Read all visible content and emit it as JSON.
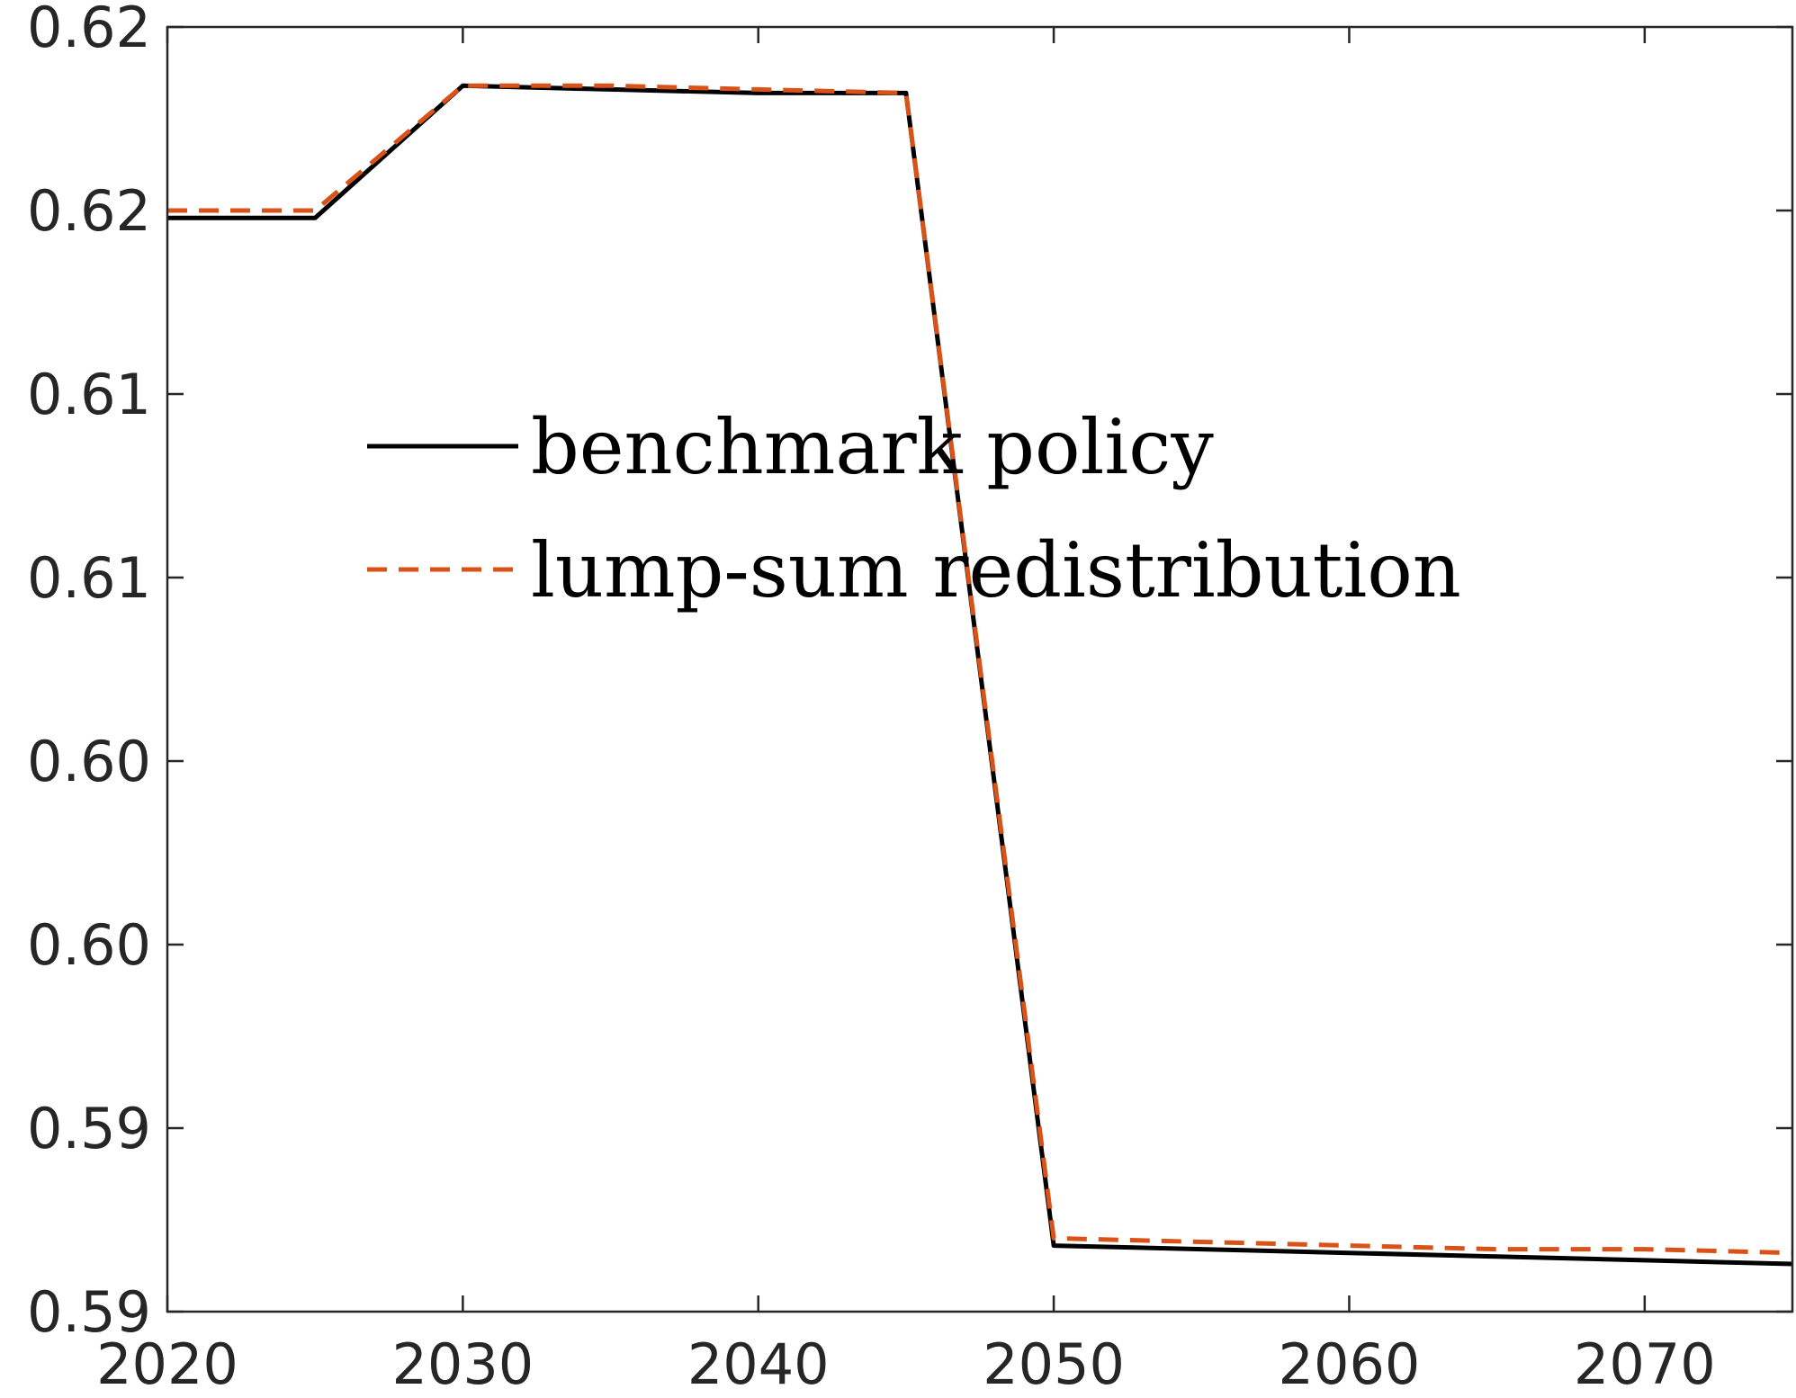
{
  "chart_data": {
    "type": "line",
    "title": "",
    "xlabel": "",
    "ylabel": "",
    "xlim": [
      2020,
      2075
    ],
    "ylim": [
      0.59,
      0.625
    ],
    "x_ticks": [
      2020,
      2030,
      2040,
      2050,
      2060,
      2070
    ],
    "x_tick_labels": [
      "2020",
      "2030",
      "2040",
      "2050",
      "2060",
      "2070"
    ],
    "y_ticks": [
      0.59,
      0.595,
      0.6,
      0.605,
      0.61,
      0.615,
      0.62,
      0.625
    ],
    "y_tick_labels": [
      "0.59",
      "0.59",
      "0.60",
      "0.60",
      "0.61",
      "0.61",
      "0.62",
      "0.62"
    ],
    "grid": false,
    "legend_position": "center",
    "series": [
      {
        "name": "benchmark policy",
        "color": "#000000",
        "style": "solid",
        "x": [
          2020,
          2025,
          2030,
          2035,
          2040,
          2045,
          2050,
          2055,
          2060,
          2065,
          2070,
          2075
        ],
        "y": [
          0.6198,
          0.6198,
          0.6234,
          0.6233,
          0.6232,
          0.6232,
          0.5918,
          0.5917,
          0.5916,
          0.5915,
          0.5914,
          0.5913
        ]
      },
      {
        "name": "lump-sum redistribution",
        "color": "#D95319",
        "style": "dashed",
        "x": [
          2020,
          2025,
          2030,
          2035,
          2040,
          2045,
          2050,
          2055,
          2060,
          2065,
          2070,
          2075
        ],
        "y": [
          0.62,
          0.62,
          0.6234,
          0.6234,
          0.6233,
          0.6232,
          0.592,
          0.5919,
          0.5918,
          0.5917,
          0.5917,
          0.5916
        ]
      }
    ]
  }
}
